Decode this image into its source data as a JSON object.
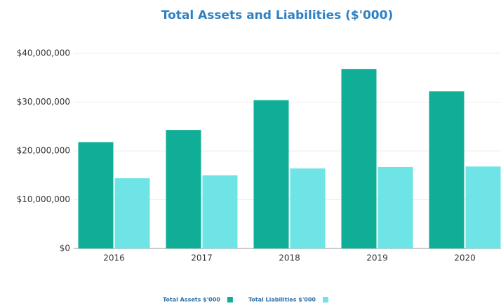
{
  "chart_data": {
    "type": "bar",
    "title": "Total Assets and Liabilities ($'000)",
    "categories": [
      "2016",
      "2017",
      "2018",
      "2019",
      "2020"
    ],
    "series": [
      {
        "name": "Total Assets $'000",
        "color": "#10ae97",
        "values": [
          21800000,
          24300000,
          30400000,
          36800000,
          32200000
        ]
      },
      {
        "name": "Total Liabilities $'000",
        "color": "#6ee4e7",
        "values": [
          14400000,
          15000000,
          16400000,
          16700000,
          16800000
        ]
      }
    ],
    "ylim": [
      0,
      40000000
    ],
    "yticks": [
      {
        "value": 0,
        "label": "$0"
      },
      {
        "value": 10000000,
        "label": "$10,000,000"
      },
      {
        "value": 20000000,
        "label": "$20,000,000"
      },
      {
        "value": 30000000,
        "label": "$30,000,000"
      },
      {
        "value": 40000000,
        "label": "$40,000,000"
      }
    ],
    "grid": true,
    "legend": "bottom"
  }
}
